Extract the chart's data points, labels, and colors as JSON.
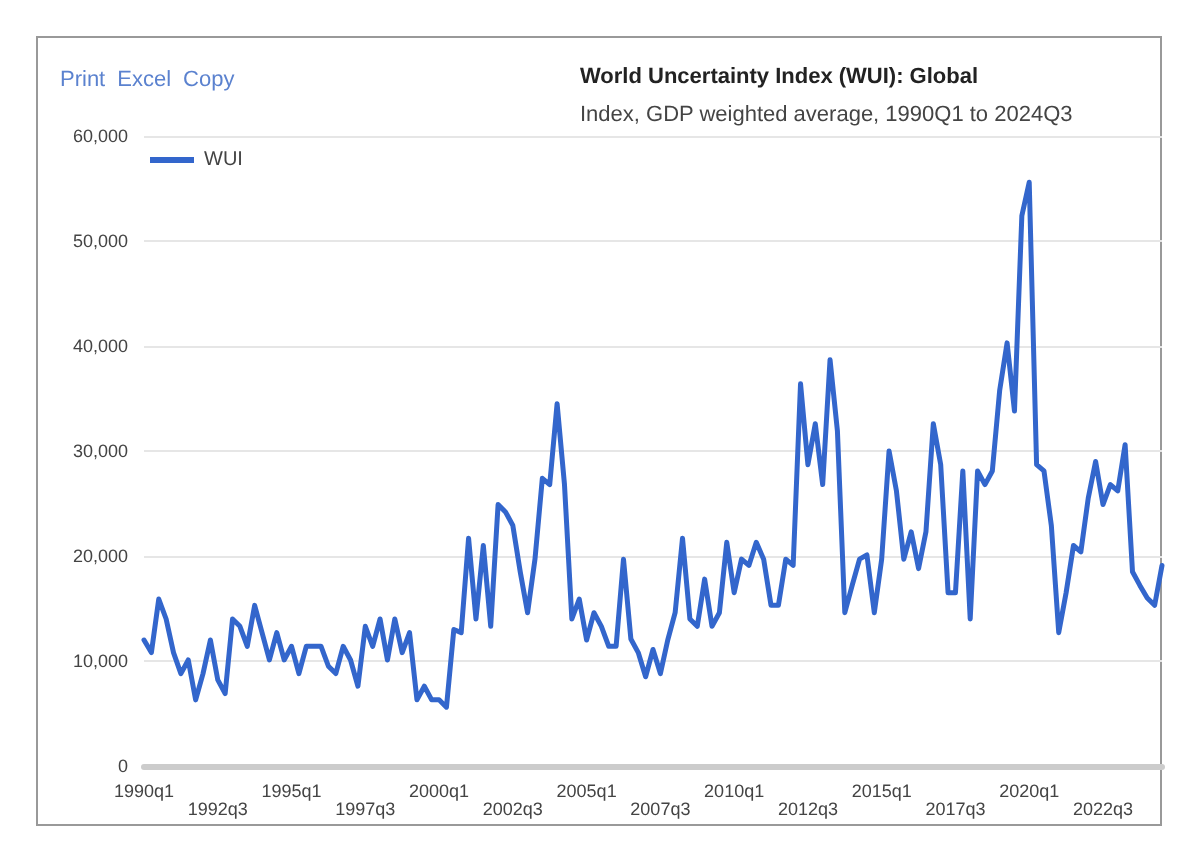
{
  "chart_data": {
    "type": "line",
    "title": "World Uncertainty Index (WUI): Global",
    "subtitle": "Index, GDP weighted average, 1990Q1 to 2024Q3",
    "annotations": [
      "Print",
      "Excel",
      "Copy"
    ],
    "categories": [
      "1990q1",
      null,
      null,
      null,
      null,
      null,
      null,
      null,
      null,
      null,
      "1992q3",
      null,
      null,
      null,
      null,
      null,
      null,
      null,
      null,
      null,
      "1995q1",
      null,
      null,
      null,
      null,
      null,
      null,
      null,
      null,
      null,
      "1997q3",
      null,
      null,
      null,
      null,
      null,
      null,
      null,
      null,
      null,
      "2000q1",
      null,
      null,
      null,
      null,
      null,
      null,
      null,
      null,
      null,
      "2002q3",
      null,
      null,
      null,
      null,
      null,
      null,
      null,
      null,
      null,
      "2005q1",
      null,
      null,
      null,
      null,
      null,
      null,
      null,
      null,
      null,
      "2007q3",
      null,
      null,
      null,
      null,
      null,
      null,
      null,
      null,
      null,
      "2010q1",
      null,
      null,
      null,
      null,
      null,
      null,
      null,
      null,
      null,
      "2012q3",
      null,
      null,
      null,
      null,
      null,
      null,
      null,
      null,
      null,
      "2015q1",
      null,
      null,
      null,
      null,
      null,
      null,
      null,
      null,
      null,
      "2017q3",
      null,
      null,
      null,
      null,
      null,
      null,
      null,
      null,
      null,
      "2020q1",
      null,
      null,
      null,
      null,
      null,
      null,
      null,
      null,
      null,
      "2022q3",
      null,
      null,
      null,
      null,
      null,
      null,
      null,
      null
    ],
    "series": [
      {
        "name": "WUI",
        "color": "#3366cc",
        "values": [
          12000,
          10800,
          15900,
          14000,
          10800,
          8800,
          10100,
          6300,
          8800,
          12000,
          8200,
          6900,
          14000,
          13300,
          11400,
          15300,
          12700,
          10100,
          12700,
          10100,
          11400,
          8800,
          11400,
          11400,
          11400,
          9500,
          8800,
          11400,
          10100,
          7600,
          13300,
          11400,
          14000,
          10100,
          14000,
          10800,
          12700,
          6300,
          7600,
          6300,
          6300,
          5600,
          13000,
          12700,
          21700,
          14000,
          21000,
          13300,
          24900,
          24200,
          22900,
          18500,
          14600,
          19700,
          27400,
          26800,
          34500,
          26800,
          14000,
          15900,
          12000,
          14600,
          13300,
          11400,
          11400,
          19700,
          12100,
          10800,
          8500,
          11100,
          8800,
          12000,
          14600,
          21700,
          14000,
          13300,
          17800,
          13300,
          14600,
          21300,
          16500,
          19700,
          19100,
          21300,
          19700,
          15300,
          15300,
          19700,
          19100,
          36400,
          28700,
          32600,
          26800,
          38700,
          31900,
          14600,
          17200,
          19700,
          20100,
          14600,
          19700,
          30000,
          26200,
          19700,
          22300,
          18800,
          22300,
          32600,
          28700,
          16500,
          16500,
          28100,
          14000,
          28100,
          26800,
          28100,
          35800,
          40300,
          33800,
          52400,
          55600,
          28700,
          28100,
          22900,
          12700,
          16500,
          21000,
          20400,
          25500,
          29000,
          24900,
          26800,
          26200,
          30600,
          18500,
          17200,
          16000,
          15300,
          19100
        ]
      }
    ],
    "ylim": [
      0,
      60000
    ],
    "yticks": [
      0,
      {
        "value": 10000,
        "label": "10,000"
      },
      {
        "value": 20000,
        "label": "20,000"
      },
      {
        "value": 30000,
        "label": "30,000"
      },
      {
        "value": 40000,
        "label": "40,000"
      },
      {
        "value": 50000,
        "label": "50,000"
      },
      {
        "value": 60000,
        "label": "60,000"
      }
    ],
    "grid": "y",
    "legend": "top left",
    "marker": "none",
    "line_style": "solid"
  }
}
